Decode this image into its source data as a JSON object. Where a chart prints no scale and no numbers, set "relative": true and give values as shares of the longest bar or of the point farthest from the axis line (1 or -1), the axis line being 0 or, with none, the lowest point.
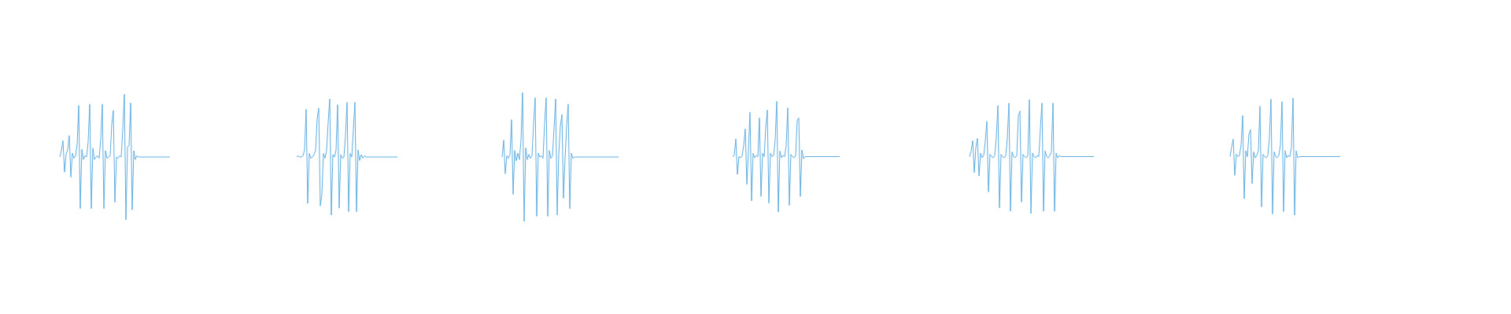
{
  "chart_data": [
    {
      "type": "line",
      "relative": true,
      "color": "#5dade2",
      "categories": [
        null,
        null,
        null,
        null,
        null,
        null,
        null,
        null,
        null,
        null,
        null,
        null,
        null,
        null,
        null,
        null,
        null,
        null,
        null,
        null,
        null,
        null,
        null,
        null,
        null,
        null,
        null,
        null,
        null,
        null,
        null,
        null,
        null,
        null,
        null,
        null,
        null,
        null,
        null,
        null,
        null,
        null,
        null,
        null,
        null,
        null,
        null,
        null,
        null,
        null,
        null,
        null,
        null,
        null,
        null,
        null,
        null,
        null,
        null,
        null,
        null,
        null,
        null,
        null,
        null,
        null,
        null,
        null,
        null,
        null,
        null
      ],
      "values": [
        0.5,
        0.55,
        0.63,
        0.38,
        0.52,
        0.56,
        0.67,
        0.34,
        0.53,
        0.49,
        0.51,
        0.6,
        0.91,
        0.09,
        0.56,
        0.48,
        0.51,
        0.5,
        0.62,
        0.92,
        0.09,
        0.57,
        0.48,
        0.5,
        0.51,
        0.49,
        0.64,
        0.92,
        0.09,
        0.55,
        0.49,
        0.5,
        0.51,
        0.76,
        0.87,
        0.14,
        0.5,
        0.49,
        0.51,
        0.5,
        0.72,
        1.0,
        0.0,
        0.58,
        0.59,
        0.93,
        0.08,
        0.55,
        0.48,
        0.51,
        0.5,
        0.5,
        0.5,
        0.5,
        0.5,
        0.5,
        0.5,
        0.5,
        0.5,
        0.5,
        0.5,
        0.5,
        0.5,
        0.5,
        0.5,
        0.5,
        0.5,
        0.5,
        0.5,
        0.5,
        0.5
      ]
    },
    {
      "type": "line",
      "relative": true,
      "color": "#5dade2",
      "categories": [
        null,
        null,
        null,
        null,
        null,
        null,
        null,
        null,
        null,
        null,
        null,
        null,
        null,
        null,
        null,
        null,
        null,
        null,
        null,
        null,
        null,
        null,
        null,
        null,
        null,
        null,
        null,
        null,
        null,
        null,
        null,
        null,
        null,
        null,
        null,
        null,
        null,
        null,
        null,
        null,
        null,
        null,
        null,
        null,
        null,
        null,
        null,
        null,
        null,
        null,
        null,
        null,
        null,
        null,
        null,
        null,
        null,
        null,
        null,
        null,
        null,
        null,
        null,
        null,
        null
      ],
      "values": [
        0.5,
        0.51,
        0.5,
        0.5,
        0.51,
        0.56,
        0.91,
        0.1,
        0.53,
        0.49,
        0.5,
        0.52,
        0.56,
        0.83,
        0.92,
        0.08,
        0.18,
        0.53,
        0.49,
        0.56,
        0.8,
        1.0,
        0.0,
        0.52,
        0.5,
        0.56,
        0.95,
        0.06,
        0.52,
        0.49,
        0.5,
        0.68,
        0.97,
        0.03,
        0.53,
        0.5,
        0.74,
        0.97,
        0.03,
        0.56,
        0.47,
        0.52,
        0.49,
        0.51,
        0.5,
        0.5,
        0.5,
        0.5,
        0.5,
        0.5,
        0.5,
        0.5,
        0.5,
        0.5,
        0.5,
        0.5,
        0.5,
        0.5,
        0.5,
        0.5,
        0.5,
        0.5,
        0.5,
        0.5,
        0.5
      ]
    },
    {
      "type": "line",
      "relative": true,
      "color": "#5dade2",
      "categories": [
        null,
        null,
        null,
        null,
        null,
        null,
        null,
        null,
        null,
        null,
        null,
        null,
        null,
        null,
        null,
        null,
        null,
        null,
        null,
        null,
        null,
        null,
        null,
        null,
        null,
        null,
        null,
        null,
        null,
        null,
        null,
        null,
        null,
        null,
        null,
        null,
        null,
        null,
        null,
        null,
        null,
        null,
        null,
        null,
        null,
        null,
        null,
        null,
        null,
        null,
        null,
        null,
        null,
        null,
        null,
        null,
        null,
        null,
        null,
        null,
        null,
        null,
        null,
        null,
        null,
        null,
        null,
        null,
        null,
        null,
        null,
        null,
        null,
        null,
        null
      ],
      "values": [
        0.5,
        0.63,
        0.37,
        0.51,
        0.49,
        0.52,
        0.79,
        0.21,
        0.55,
        0.47,
        0.53,
        0.48,
        0.63,
        1.0,
        0.0,
        0.57,
        0.48,
        0.52,
        0.49,
        0.51,
        0.76,
        0.96,
        0.04,
        0.53,
        0.5,
        0.51,
        0.49,
        0.76,
        0.96,
        0.04,
        0.55,
        0.49,
        0.51,
        0.72,
        0.95,
        0.05,
        0.52,
        0.74,
        0.83,
        0.18,
        0.49,
        0.74,
        0.91,
        0.1,
        0.53,
        0.49,
        0.5,
        0.5,
        0.5,
        0.5,
        0.5,
        0.5,
        0.5,
        0.5,
        0.5,
        0.5,
        0.5,
        0.5,
        0.5,
        0.5,
        0.5,
        0.5,
        0.5,
        0.5,
        0.5,
        0.5,
        0.5,
        0.5,
        0.5,
        0.5,
        0.5,
        0.5,
        0.5,
        0.5,
        0.5
      ]
    },
    {
      "type": "line",
      "relative": true,
      "color": "#5dade2",
      "categories": [
        null,
        null,
        null,
        null,
        null,
        null,
        null,
        null,
        null,
        null,
        null,
        null,
        null,
        null,
        null,
        null,
        null,
        null,
        null,
        null,
        null,
        null,
        null,
        null,
        null,
        null,
        null,
        null,
        null,
        null,
        null,
        null,
        null,
        null,
        null,
        null,
        null,
        null,
        null,
        null,
        null,
        null,
        null,
        null,
        null,
        null,
        null,
        null,
        null,
        null,
        null,
        null,
        null,
        null,
        null,
        null,
        null,
        null,
        null,
        null,
        null,
        null,
        null,
        null,
        null,
        null,
        null,
        null,
        null
      ],
      "values": [
        0.5,
        0.51,
        0.66,
        0.34,
        0.5,
        0.49,
        0.51,
        0.6,
        0.75,
        0.25,
        0.55,
        0.9,
        0.1,
        0.53,
        0.49,
        0.51,
        0.5,
        0.85,
        0.14,
        0.53,
        0.5,
        0.76,
        0.92,
        0.08,
        0.53,
        0.5,
        0.51,
        0.65,
        1.0,
        0.0,
        0.55,
        0.49,
        0.51,
        0.5,
        0.6,
        0.94,
        0.06,
        0.52,
        0.5,
        0.49,
        0.51,
        0.83,
        0.85,
        0.14,
        0.56,
        0.48,
        0.5,
        0.5,
        0.5,
        0.5,
        0.5,
        0.5,
        0.5,
        0.5,
        0.5,
        0.5,
        0.5,
        0.5,
        0.5,
        0.5,
        0.5,
        0.5,
        0.5,
        0.5,
        0.5,
        0.5,
        0.5,
        0.5,
        0.5
      ]
    },
    {
      "type": "line",
      "relative": true,
      "color": "#5dade2",
      "categories": [
        null,
        null,
        null,
        null,
        null,
        null,
        null,
        null,
        null,
        null,
        null,
        null,
        null,
        null,
        null,
        null,
        null,
        null,
        null,
        null,
        null,
        null,
        null,
        null,
        null,
        null,
        null,
        null,
        null,
        null,
        null,
        null,
        null,
        null,
        null,
        null,
        null,
        null,
        null,
        null,
        null,
        null,
        null,
        null,
        null,
        null,
        null,
        null,
        null,
        null,
        null,
        null,
        null,
        null,
        null,
        null,
        null,
        null,
        null,
        null,
        null,
        null,
        null,
        null,
        null,
        null,
        null,
        null,
        null,
        null,
        null,
        null,
        null,
        null,
        null,
        null,
        null,
        null,
        null,
        null
      ],
      "values": [
        0.5,
        0.55,
        0.64,
        0.36,
        0.58,
        0.66,
        0.33,
        0.53,
        0.49,
        0.51,
        0.64,
        0.81,
        0.19,
        0.52,
        0.5,
        0.49,
        0.51,
        0.67,
        0.95,
        0.05,
        0.52,
        0.5,
        0.49,
        0.51,
        0.66,
        0.97,
        0.02,
        0.54,
        0.5,
        0.49,
        0.51,
        0.86,
        0.9,
        0.1,
        0.52,
        0.5,
        0.49,
        0.51,
        1.0,
        0.0,
        0.53,
        0.5,
        0.49,
        0.51,
        0.5,
        0.75,
        0.97,
        0.02,
        0.55,
        0.5,
        0.49,
        0.51,
        0.54,
        0.97,
        0.02,
        0.53,
        0.49,
        0.51,
        0.5,
        0.5,
        0.5,
        0.5,
        0.5,
        0.5,
        0.5,
        0.5,
        0.5,
        0.5,
        0.5,
        0.5,
        0.5,
        0.5,
        0.5,
        0.5,
        0.5,
        0.5,
        0.5,
        0.5,
        0.5,
        0.5
      ]
    },
    {
      "type": "line",
      "relative": true,
      "color": "#5dade2",
      "categories": [
        null,
        null,
        null,
        null,
        null,
        null,
        null,
        null,
        null,
        null,
        null,
        null,
        null,
        null,
        null,
        null,
        null,
        null,
        null,
        null,
        null,
        null,
        null,
        null,
        null,
        null,
        null,
        null,
        null,
        null,
        null,
        null,
        null,
        null,
        null,
        null,
        null,
        null,
        null,
        null,
        null,
        null,
        null,
        null,
        null,
        null,
        null,
        null,
        null,
        null,
        null,
        null,
        null,
        null,
        null,
        null,
        null,
        null,
        null,
        null,
        null,
        null,
        null,
        null,
        null,
        null,
        null,
        null,
        null,
        null,
        null
      ],
      "values": [
        0.5,
        0.58,
        0.65,
        0.34,
        0.52,
        0.5,
        0.51,
        0.6,
        0.85,
        0.14,
        0.55,
        0.5,
        0.69,
        0.73,
        0.27,
        0.54,
        0.49,
        0.51,
        0.55,
        0.93,
        0.07,
        0.52,
        0.5,
        0.49,
        0.51,
        0.66,
        0.99,
        0.01,
        0.54,
        0.5,
        0.49,
        0.51,
        0.6,
        0.97,
        0.03,
        0.55,
        0.49,
        0.51,
        0.5,
        0.58,
        1.0,
        0.0,
        0.55,
        0.49,
        0.5,
        0.5,
        0.5,
        0.5,
        0.5,
        0.5,
        0.5,
        0.5,
        0.5,
        0.5,
        0.5,
        0.5,
        0.5,
        0.5,
        0.5,
        0.5,
        0.5,
        0.5,
        0.5,
        0.5,
        0.5,
        0.5,
        0.5,
        0.5,
        0.5,
        0.5,
        0.5
      ]
    }
  ]
}
